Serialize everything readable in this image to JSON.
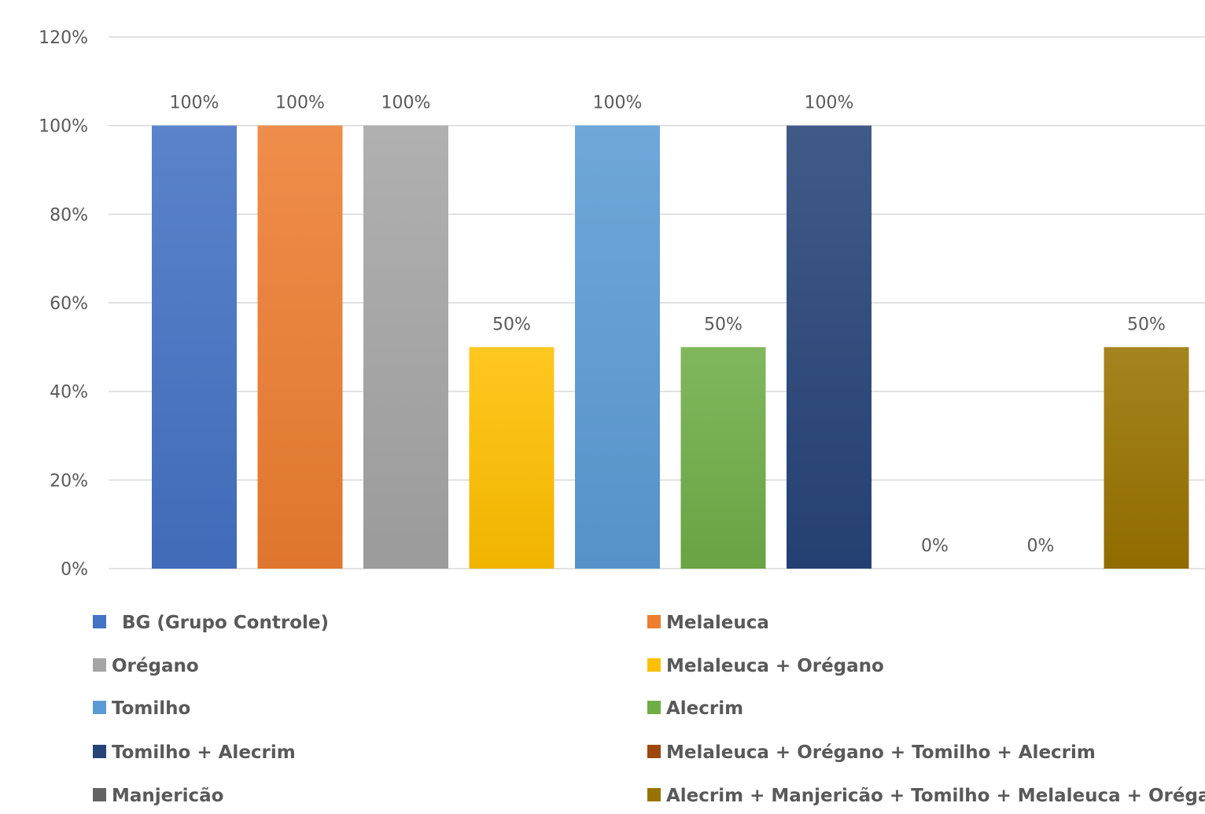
{
  "chart_data": {
    "type": "bar",
    "title": "",
    "xlabel": "",
    "ylabel": "",
    "ylim": [
      0,
      1.2
    ],
    "grid": true,
    "legend_position": "bottom",
    "y_ticks": [
      "0%",
      "20%",
      "40%",
      "60%",
      "80%",
      "100%",
      "120%"
    ],
    "series": [
      {
        "name": "BG (Grupo Controle)",
        "value": 1.0,
        "label": "100%",
        "color": "#4472C4"
      },
      {
        "name": "Melaleuca",
        "value": 1.0,
        "label": "100%",
        "color": "#ED7D31"
      },
      {
        "name": "Orégano",
        "value": 1.0,
        "label": "100%",
        "color": "#A5A5A5"
      },
      {
        "name": "Melaleuca + Orégano",
        "value": 0.5,
        "label": "50%",
        "color": "#FFC000"
      },
      {
        "name": "Tomilho",
        "value": 1.0,
        "label": "100%",
        "color": "#5B9BD5"
      },
      {
        "name": "Alecrim",
        "value": 0.5,
        "label": "50%",
        "color": "#70AD47"
      },
      {
        "name": "Tomilho + Alecrim",
        "value": 1.0,
        "label": "100%",
        "color": "#264478"
      },
      {
        "name": "Melaleuca + Orégano + Tomilho + Alecrim",
        "value": 0.0,
        "label": "0%",
        "color": "#9E480E"
      },
      {
        "name": "Manjericão",
        "value": 0.0,
        "label": "0%",
        "color": "#636363"
      },
      {
        "name": "Alecrim + Manjericão + Tomilho + Melaleuca + Orégano",
        "value": 0.5,
        "label": "50%",
        "color": "#997300"
      }
    ]
  }
}
